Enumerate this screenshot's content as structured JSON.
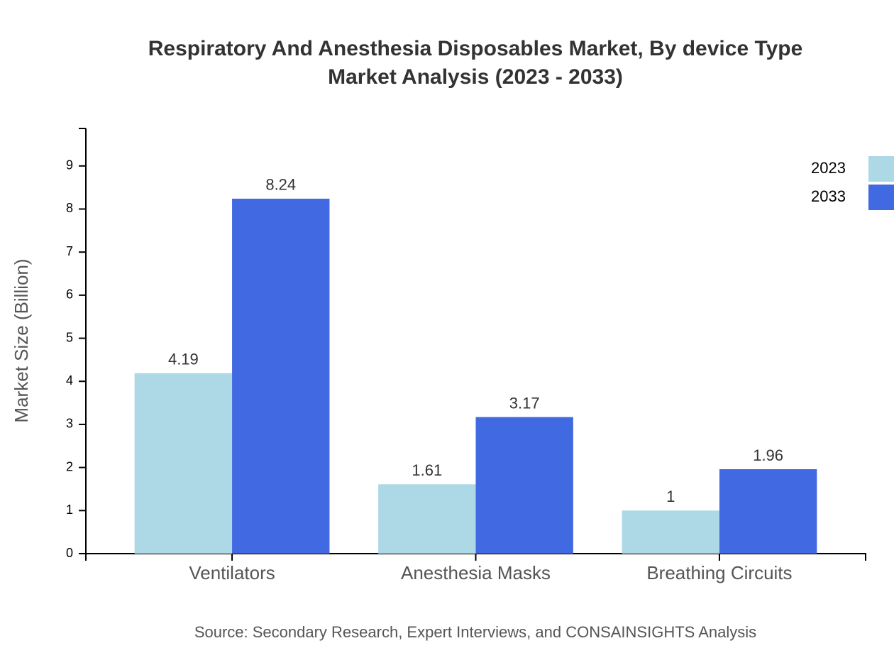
{
  "chart_data": {
    "type": "bar",
    "title_lines": [
      "Respiratory And Anesthesia Disposables Market, By device Type",
      "Market Analysis (2023 - 2033)"
    ],
    "y_label": "Market Size (Billion)",
    "source": "Source: Secondary Research, Expert Interviews, and CONSAINSIGHTS Analysis",
    "categories": [
      "Ventilators",
      "Anesthesia Masks",
      "Breathing Circuits"
    ],
    "series": [
      {
        "name": "2023",
        "color": "#add8e6",
        "values": [
          4.19,
          1.61,
          1
        ]
      },
      {
        "name": "2033",
        "color": "#4169e1",
        "values": [
          8.24,
          3.17,
          1.96
        ]
      }
    ],
    "ylim": [
      0,
      9.87
    ],
    "yticks": [
      0,
      1,
      2,
      3,
      4,
      5,
      6,
      7,
      8,
      9
    ]
  }
}
